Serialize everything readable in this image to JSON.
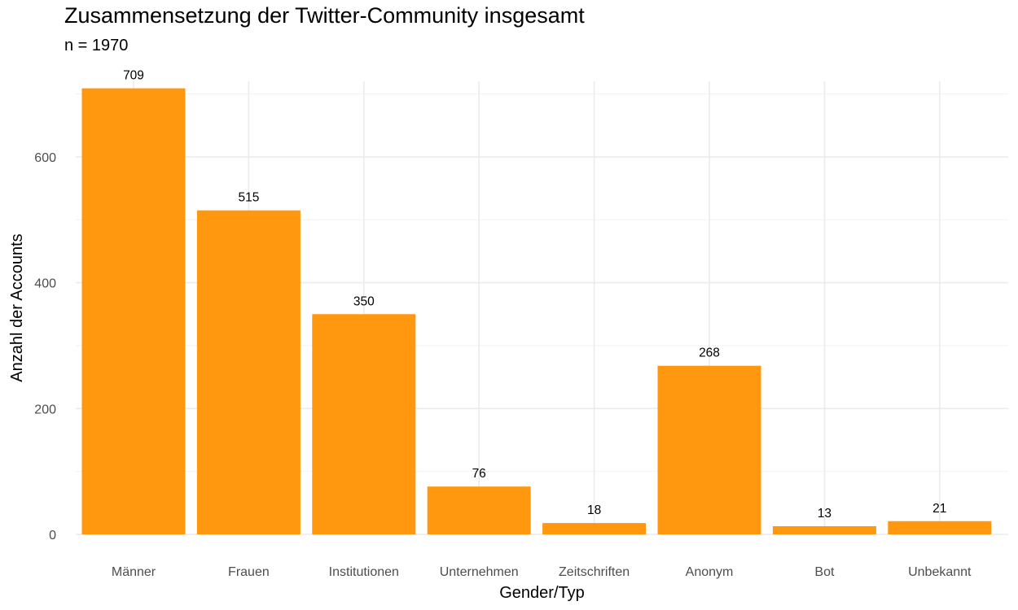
{
  "title": "Zusammensetzung der Twitter-Community insgesamt",
  "subtitle": "n = 1970",
  "chart_data": {
    "type": "bar",
    "categories": [
      "Männer",
      "Frauen",
      "Institutionen",
      "Unternehmen",
      "Zeitschriften",
      "Anonym",
      "Bot",
      "Unbekannt"
    ],
    "values": [
      709,
      515,
      350,
      76,
      18,
      268,
      13,
      21
    ],
    "data_labels": [
      "709",
      "515",
      "350",
      "76",
      "18",
      "268",
      "13",
      "21"
    ],
    "xlabel": "Gender/Typ",
    "ylabel": "Anzahl der Accounts",
    "ylim": [
      0,
      720
    ],
    "yticks": [
      0,
      200,
      400,
      600
    ],
    "ytick_labels": [
      "0",
      "200",
      "400",
      "600"
    ],
    "grid": true,
    "bar_color": "#FF980F",
    "legend": "none"
  }
}
